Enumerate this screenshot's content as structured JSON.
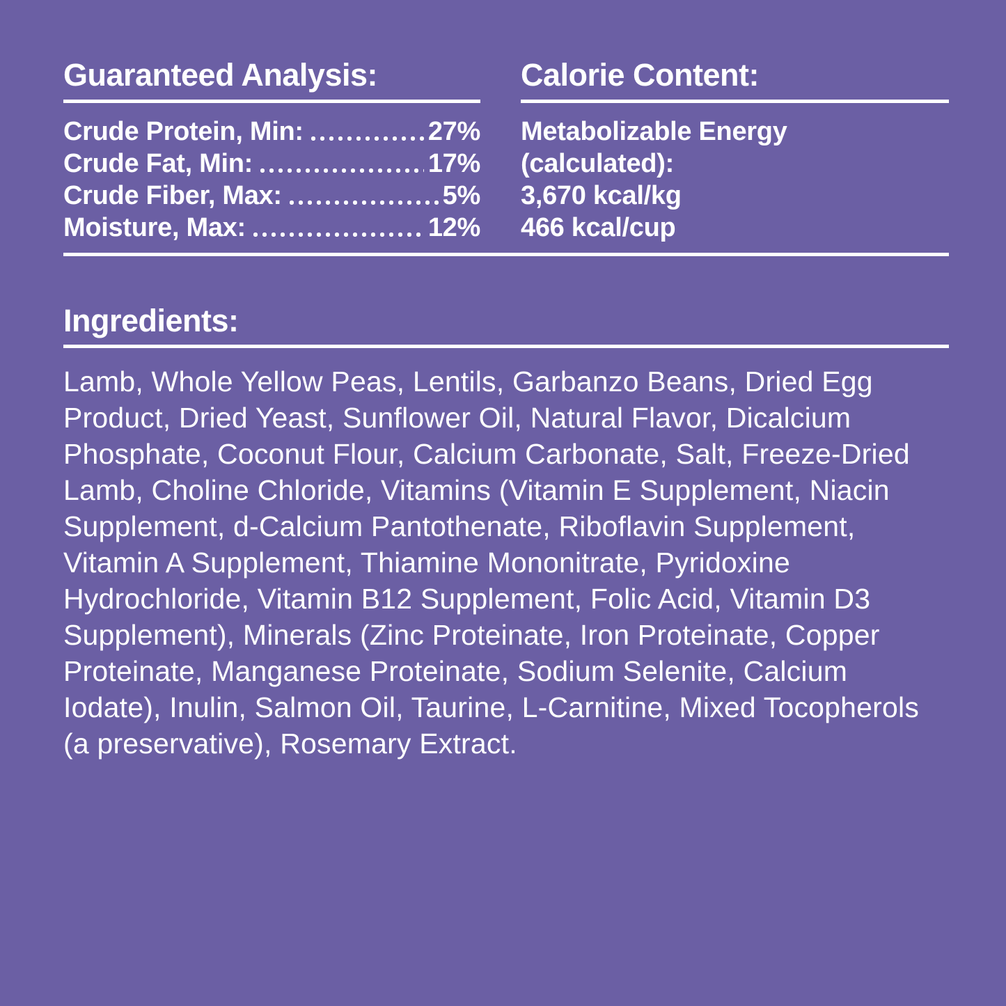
{
  "colors": {
    "background": "#6B5FA4",
    "text": "#FFFFFF",
    "rule": "#FFFFFF"
  },
  "guaranteed_analysis": {
    "title": "Guaranteed Analysis:",
    "rows": [
      {
        "label": "Crude Protein, Min:",
        "value": "27%"
      },
      {
        "label": "Crude Fat, Min:",
        "value": "17%"
      },
      {
        "label": "Crude Fiber, Max:",
        "value": "5%"
      },
      {
        "label": "Moisture, Max:",
        "value": "12%"
      }
    ]
  },
  "calorie_content": {
    "title": "Calorie Content:",
    "lines": [
      "Metabolizable Energy",
      "(calculated):",
      "3,670 kcal/kg",
      "466 kcal/cup"
    ]
  },
  "ingredients": {
    "title": "Ingredients:",
    "text": "Lamb, Whole Yellow Peas, Lentils, Garbanzo Beans, Dried Egg Product, Dried Yeast, Sunflower Oil, Natural Flavor, Dicalcium Phosphate, Coconut Flour, Calcium Carbonate, Salt, Freeze-Dried Lamb, Choline Chloride, Vitamins (Vitamin E Supplement, Niacin Supplement, d-Calcium Pantothenate, Riboflavin Supplement, Vitamin A Supplement, Thiamine Mononitrate, Pyridoxine Hydrochloride, Vitamin B12 Supplement, Folic Acid, Vitamin D3 Supplement), Minerals (Zinc Proteinate, Iron Proteinate, Copper Proteinate, Manganese Proteinate, Sodium Selenite, Calcium Iodate), Inulin, Salmon Oil, Taurine, L-Carnitine, Mixed Tocopherols (a preservative), Rosemary Extract."
  }
}
